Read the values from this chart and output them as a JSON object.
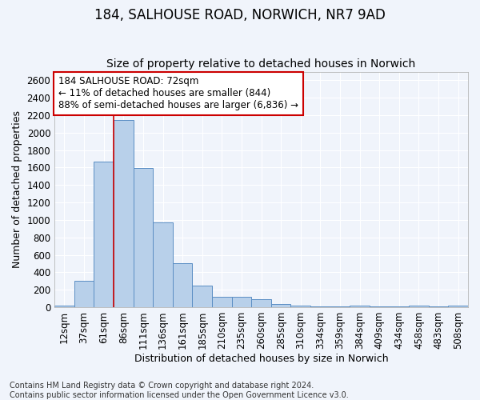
{
  "title_line1": "184, SALHOUSE ROAD, NORWICH, NR7 9AD",
  "title_line2": "Size of property relative to detached houses in Norwich",
  "xlabel": "Distribution of detached houses by size in Norwich",
  "ylabel": "Number of detached properties",
  "categories": [
    "12sqm",
    "37sqm",
    "61sqm",
    "86sqm",
    "111sqm",
    "136sqm",
    "161sqm",
    "185sqm",
    "210sqm",
    "235sqm",
    "260sqm",
    "285sqm",
    "310sqm",
    "334sqm",
    "359sqm",
    "384sqm",
    "409sqm",
    "434sqm",
    "458sqm",
    "483sqm",
    "508sqm"
  ],
  "values": [
    18,
    300,
    1670,
    2150,
    1595,
    970,
    505,
    245,
    120,
    115,
    95,
    40,
    18,
    12,
    5,
    18,
    5,
    5,
    18,
    5,
    18
  ],
  "bar_color": "#b8d0ea",
  "bar_edge_color": "#5b8ec4",
  "vline_color": "#cc0000",
  "annotation_text": "184 SALHOUSE ROAD: 72sqm\n← 11% of detached houses are smaller (844)\n88% of semi-detached houses are larger (6,836) →",
  "annotation_box_color": "#ffffff",
  "annotation_box_edge_color": "#cc0000",
  "ylim": [
    0,
    2700
  ],
  "yticks": [
    0,
    200,
    400,
    600,
    800,
    1000,
    1200,
    1400,
    1600,
    1800,
    2000,
    2200,
    2400,
    2600
  ],
  "footnote": "Contains HM Land Registry data © Crown copyright and database right 2024.\nContains public sector information licensed under the Open Government Licence v3.0.",
  "background_color": "#f0f4fb",
  "grid_color": "#ffffff",
  "title_fontsize": 12,
  "subtitle_fontsize": 10,
  "axis_label_fontsize": 9,
  "tick_fontsize": 8.5,
  "annotation_fontsize": 8.5,
  "footnote_fontsize": 7
}
